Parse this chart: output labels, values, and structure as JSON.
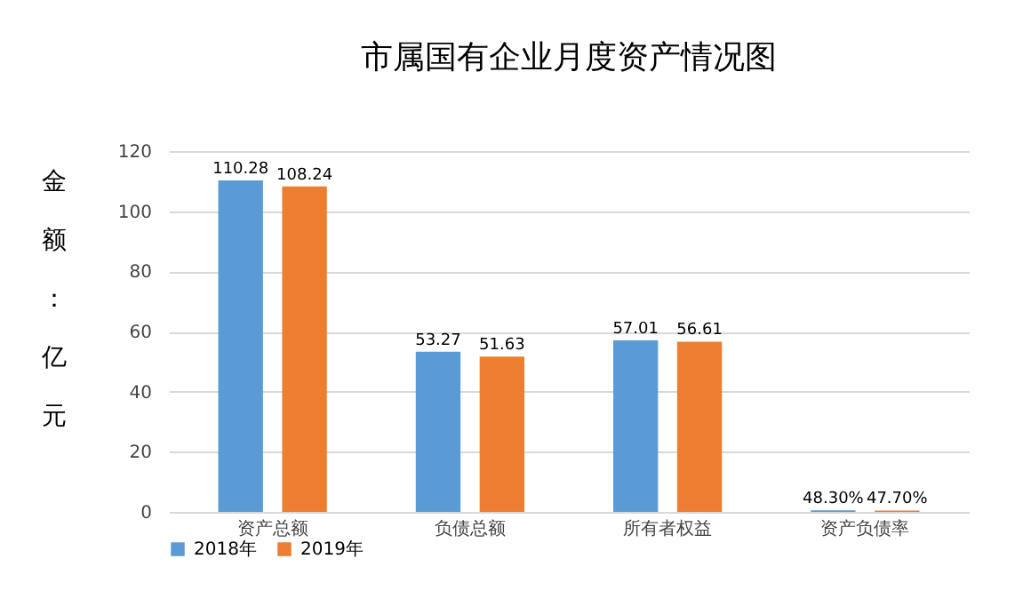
{
  "chart_data": {
    "type": "bar",
    "title": "市属国有企业月度资产情况图",
    "ylabel": "金额：亿元",
    "categories": [
      "资产总额",
      "负债总额",
      "所有者权益",
      "资产负债率"
    ],
    "series": [
      {
        "name": "2018年",
        "color": "#5b9bd5",
        "values": [
          110.28,
          53.27,
          57.01,
          0.483
        ],
        "value_labels": [
          "110.28",
          "53.27",
          "57.01",
          "48.30%"
        ]
      },
      {
        "name": "2019年",
        "color": "#ed7d31",
        "values": [
          108.24,
          51.63,
          56.61,
          0.477
        ],
        "value_labels": [
          "108.24",
          "51.63",
          "56.61",
          "47.70%"
        ]
      }
    ],
    "ylim": [
      0,
      120
    ],
    "yticks": [
      0,
      20,
      40,
      60,
      80,
      100,
      120
    ],
    "grid": "y",
    "legend": "bottom"
  }
}
